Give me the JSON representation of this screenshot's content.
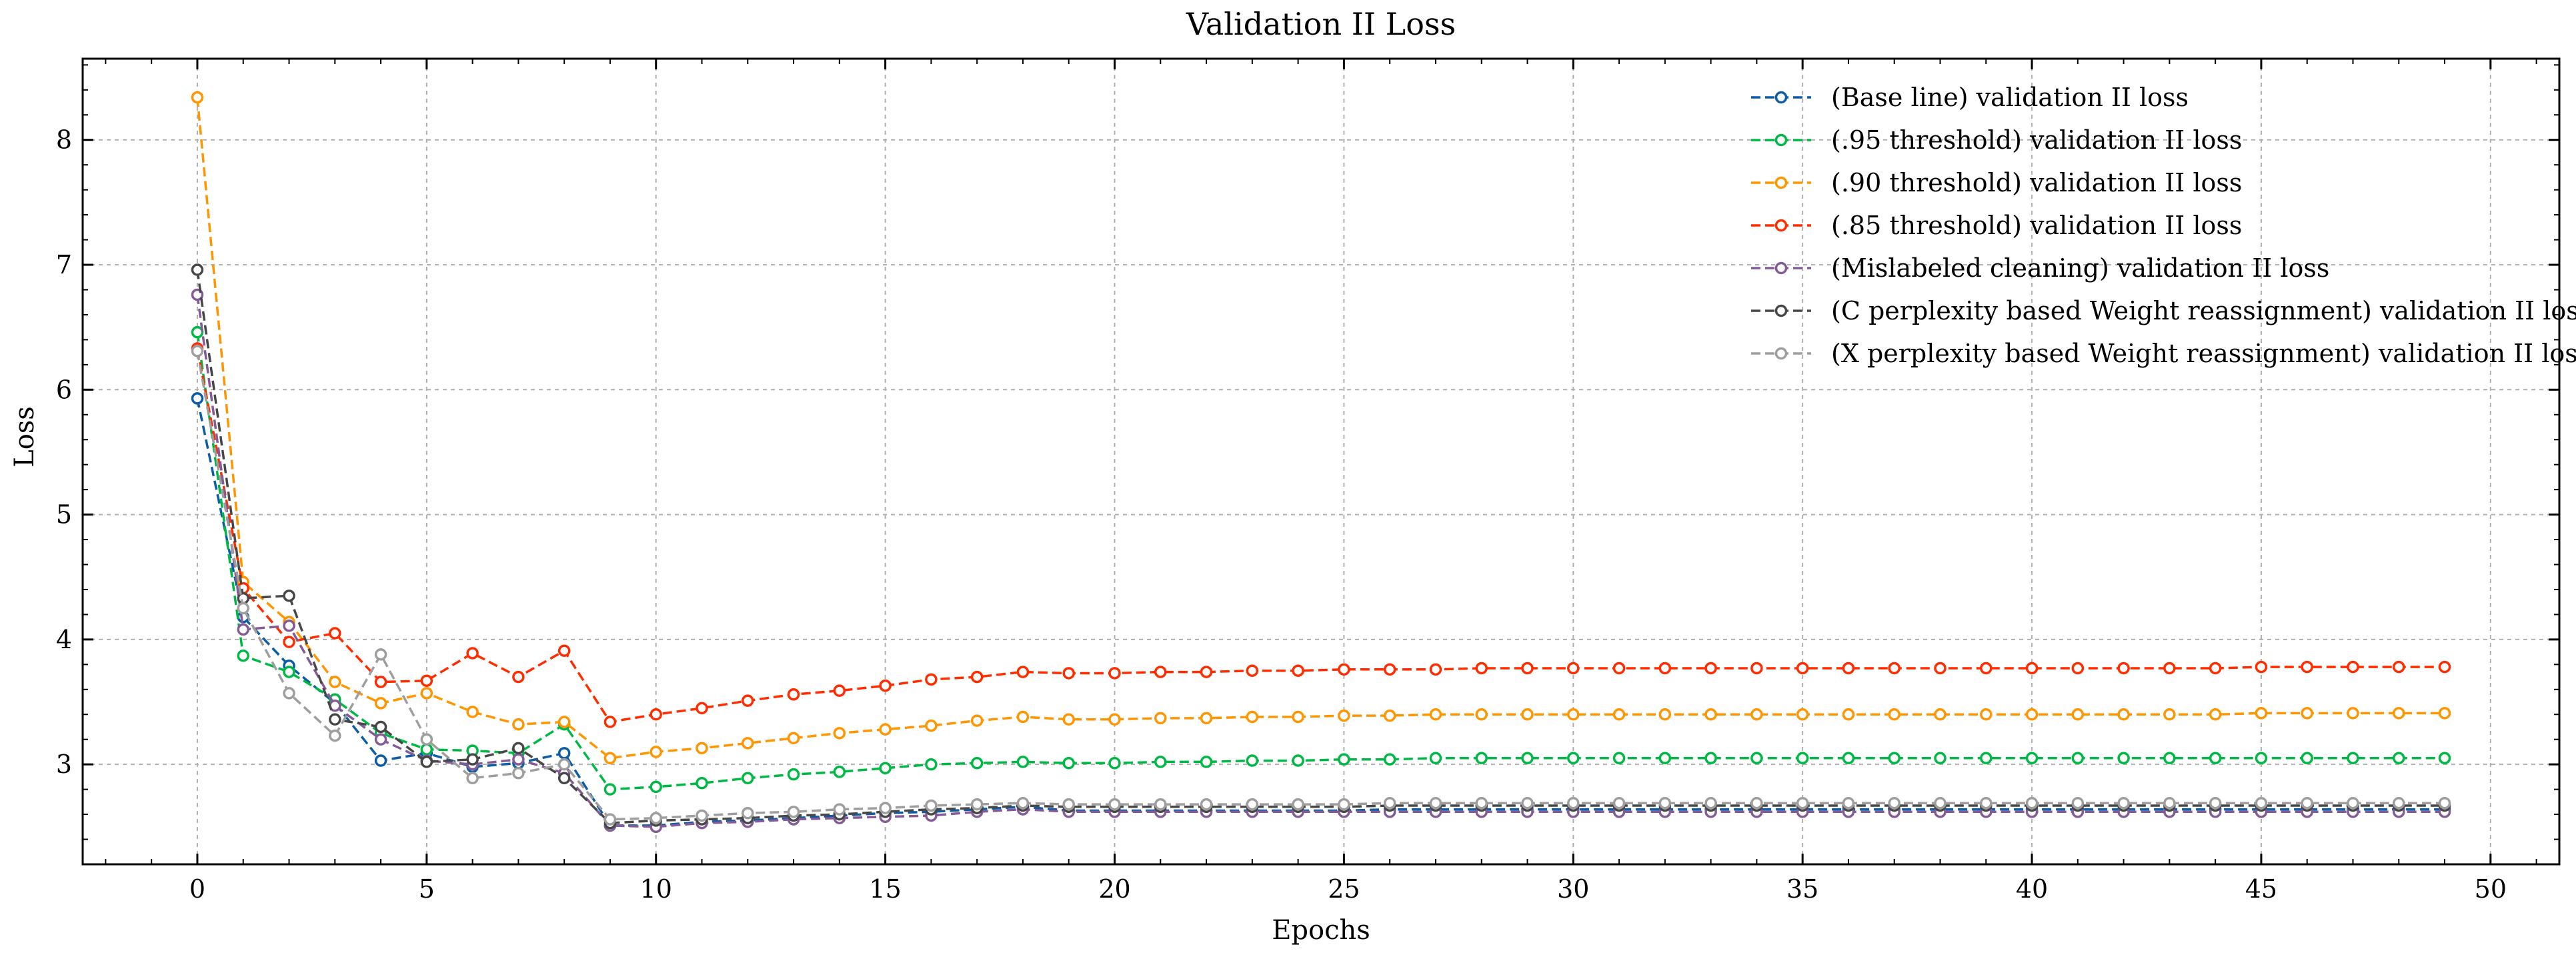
{
  "chart_data": {
    "type": "line",
    "title": "Validation II Loss",
    "xlabel": "Epochs",
    "ylabel": "Loss",
    "xlim": [
      -2.5,
      51.5
    ],
    "ylim": [
      2.2,
      8.65
    ],
    "xticks": [
      0,
      5,
      10,
      15,
      20,
      25,
      30,
      35,
      40,
      45,
      50
    ],
    "yticks": [
      3,
      4,
      5,
      6,
      7,
      8
    ],
    "grid": true,
    "legend_position": "top-right",
    "series": [
      {
        "name": "(Base line) validation II loss",
        "color": "#0c5da5",
        "x": [
          0,
          1,
          2,
          3,
          4,
          5,
          6,
          7,
          8,
          9,
          10,
          11,
          12,
          13,
          14,
          15,
          16,
          17,
          18,
          19,
          20,
          21,
          22,
          23,
          24,
          25,
          26,
          27,
          28,
          29,
          30,
          31,
          32,
          33,
          34,
          35,
          36,
          37,
          38,
          39,
          40,
          41,
          42,
          43,
          44,
          45,
          46,
          47,
          48,
          49
        ],
        "values": [
          5.93,
          4.18,
          3.79,
          3.49,
          3.03,
          3.09,
          2.98,
          3.01,
          3.09,
          2.51,
          2.51,
          2.54,
          2.55,
          2.57,
          2.59,
          2.61,
          2.62,
          2.64,
          2.66,
          2.63,
          2.63,
          2.63,
          2.63,
          2.63,
          2.63,
          2.63,
          2.64,
          2.64,
          2.64,
          2.64,
          2.64,
          2.64,
          2.64,
          2.64,
          2.64,
          2.64,
          2.64,
          2.64,
          2.64,
          2.64,
          2.64,
          2.64,
          2.64,
          2.64,
          2.64,
          2.64,
          2.64,
          2.64,
          2.64,
          2.64
        ]
      },
      {
        "name": "(.95 threshold) validation II loss",
        "color": "#00b945",
        "x": [
          0,
          1,
          2,
          3,
          4,
          5,
          6,
          7,
          8,
          9,
          10,
          11,
          12,
          13,
          14,
          15,
          16,
          17,
          18,
          19,
          20,
          21,
          22,
          23,
          24,
          25,
          26,
          27,
          28,
          29,
          30,
          31,
          32,
          33,
          34,
          35,
          36,
          37,
          38,
          39,
          40,
          41,
          42,
          43,
          44,
          45,
          46,
          47,
          48,
          49
        ],
        "values": [
          6.46,
          3.87,
          3.74,
          3.52,
          3.25,
          3.12,
          3.11,
          3.09,
          3.32,
          2.8,
          2.82,
          2.85,
          2.89,
          2.92,
          2.94,
          2.97,
          3.0,
          3.01,
          3.02,
          3.01,
          3.01,
          3.02,
          3.02,
          3.03,
          3.03,
          3.04,
          3.04,
          3.05,
          3.05,
          3.05,
          3.05,
          3.05,
          3.05,
          3.05,
          3.05,
          3.05,
          3.05,
          3.05,
          3.05,
          3.05,
          3.05,
          3.05,
          3.05,
          3.05,
          3.05,
          3.05,
          3.05,
          3.05,
          3.05,
          3.05
        ]
      },
      {
        "name": "(.90 threshold) validation II loss",
        "color": "#ff9500",
        "x": [
          0,
          1,
          2,
          3,
          4,
          5,
          6,
          7,
          8,
          9,
          10,
          11,
          12,
          13,
          14,
          15,
          16,
          17,
          18,
          19,
          20,
          21,
          22,
          23,
          24,
          25,
          26,
          27,
          28,
          29,
          30,
          31,
          32,
          33,
          34,
          35,
          36,
          37,
          38,
          39,
          40,
          41,
          42,
          43,
          44,
          45,
          46,
          47,
          48,
          49
        ],
        "values": [
          8.34,
          4.46,
          4.14,
          3.66,
          3.49,
          3.57,
          3.42,
          3.32,
          3.34,
          3.05,
          3.1,
          3.13,
          3.17,
          3.21,
          3.25,
          3.28,
          3.31,
          3.35,
          3.38,
          3.36,
          3.36,
          3.37,
          3.37,
          3.38,
          3.38,
          3.39,
          3.39,
          3.4,
          3.4,
          3.4,
          3.4,
          3.4,
          3.4,
          3.4,
          3.4,
          3.4,
          3.4,
          3.4,
          3.4,
          3.4,
          3.4,
          3.4,
          3.4,
          3.4,
          3.4,
          3.41,
          3.41,
          3.41,
          3.41,
          3.41
        ]
      },
      {
        "name": "(.85 threshold) validation II loss",
        "color": "#ff2c00",
        "x": [
          0,
          1,
          2,
          3,
          4,
          5,
          6,
          7,
          8,
          9,
          10,
          11,
          12,
          13,
          14,
          15,
          16,
          17,
          18,
          19,
          20,
          21,
          22,
          23,
          24,
          25,
          26,
          27,
          28,
          29,
          30,
          31,
          32,
          33,
          34,
          35,
          36,
          37,
          38,
          39,
          40,
          41,
          42,
          43,
          44,
          45,
          46,
          47,
          48,
          49
        ],
        "values": [
          6.33,
          4.41,
          3.98,
          4.05,
          3.66,
          3.67,
          3.89,
          3.7,
          3.91,
          3.34,
          3.4,
          3.45,
          3.51,
          3.56,
          3.59,
          3.63,
          3.68,
          3.7,
          3.74,
          3.73,
          3.73,
          3.74,
          3.74,
          3.75,
          3.75,
          3.76,
          3.76,
          3.76,
          3.77,
          3.77,
          3.77,
          3.77,
          3.77,
          3.77,
          3.77,
          3.77,
          3.77,
          3.77,
          3.77,
          3.77,
          3.77,
          3.77,
          3.77,
          3.77,
          3.77,
          3.78,
          3.78,
          3.78,
          3.78,
          3.78
        ]
      },
      {
        "name": "(Mislabeled cleaning) validation II loss",
        "color": "#845b97",
        "x": [
          0,
          1,
          2,
          3,
          4,
          5,
          6,
          7,
          8,
          9,
          10,
          11,
          12,
          13,
          14,
          15,
          16,
          17,
          18,
          19,
          20,
          21,
          22,
          23,
          24,
          25,
          26,
          27,
          28,
          29,
          30,
          31,
          32,
          33,
          34,
          35,
          36,
          37,
          38,
          39,
          40,
          41,
          42,
          43,
          44,
          45,
          46,
          47,
          48,
          49
        ],
        "values": [
          6.76,
          4.08,
          4.11,
          3.47,
          3.2,
          3.03,
          3.0,
          3.04,
          2.93,
          2.51,
          2.5,
          2.53,
          2.54,
          2.56,
          2.57,
          2.58,
          2.59,
          2.62,
          2.64,
          2.62,
          2.62,
          2.62,
          2.62,
          2.62,
          2.62,
          2.62,
          2.62,
          2.62,
          2.62,
          2.62,
          2.62,
          2.62,
          2.62,
          2.62,
          2.62,
          2.62,
          2.62,
          2.62,
          2.62,
          2.62,
          2.62,
          2.62,
          2.62,
          2.62,
          2.62,
          2.62,
          2.62,
          2.62,
          2.62,
          2.62
        ]
      },
      {
        "name": "(C perplexity based Weight reassignment) validation II loss",
        "color": "#474747",
        "x": [
          0,
          1,
          2,
          3,
          4,
          5,
          6,
          7,
          8,
          9,
          10,
          11,
          12,
          13,
          14,
          15,
          16,
          17,
          18,
          19,
          20,
          21,
          22,
          23,
          24,
          25,
          26,
          27,
          28,
          29,
          30,
          31,
          32,
          33,
          34,
          35,
          36,
          37,
          38,
          39,
          40,
          41,
          42,
          43,
          44,
          45,
          46,
          47,
          48,
          49
        ],
        "values": [
          6.96,
          4.33,
          4.35,
          3.36,
          3.3,
          3.02,
          3.04,
          3.13,
          2.89,
          2.53,
          2.55,
          2.56,
          2.57,
          2.59,
          2.6,
          2.62,
          2.64,
          2.65,
          2.67,
          2.66,
          2.66,
          2.66,
          2.66,
          2.66,
          2.66,
          2.66,
          2.67,
          2.67,
          2.67,
          2.67,
          2.67,
          2.67,
          2.67,
          2.67,
          2.67,
          2.67,
          2.67,
          2.67,
          2.67,
          2.67,
          2.67,
          2.67,
          2.67,
          2.67,
          2.67,
          2.67,
          2.67,
          2.67,
          2.67,
          2.67
        ]
      },
      {
        "name": "(X perplexity based Weight reassignment) validation II loss",
        "color": "#9e9e9e",
        "x": [
          0,
          1,
          2,
          3,
          4,
          5,
          6,
          7,
          8,
          9,
          10,
          11,
          12,
          13,
          14,
          15,
          16,
          17,
          18,
          19,
          20,
          21,
          22,
          23,
          24,
          25,
          26,
          27,
          28,
          29,
          30,
          31,
          32,
          33,
          34,
          35,
          36,
          37,
          38,
          39,
          40,
          41,
          42,
          43,
          44,
          45,
          46,
          47,
          48,
          49
        ],
        "values": [
          6.31,
          4.25,
          3.57,
          3.23,
          3.88,
          3.2,
          2.89,
          2.93,
          3.0,
          2.56,
          2.57,
          2.59,
          2.61,
          2.62,
          2.64,
          2.65,
          2.67,
          2.68,
          2.69,
          2.68,
          2.68,
          2.68,
          2.68,
          2.68,
          2.68,
          2.68,
          2.69,
          2.69,
          2.69,
          2.69,
          2.69,
          2.69,
          2.69,
          2.69,
          2.69,
          2.69,
          2.69,
          2.69,
          2.69,
          2.69,
          2.69,
          2.69,
          2.69,
          2.69,
          2.69,
          2.69,
          2.69,
          2.69,
          2.69,
          2.69
        ]
      }
    ]
  }
}
